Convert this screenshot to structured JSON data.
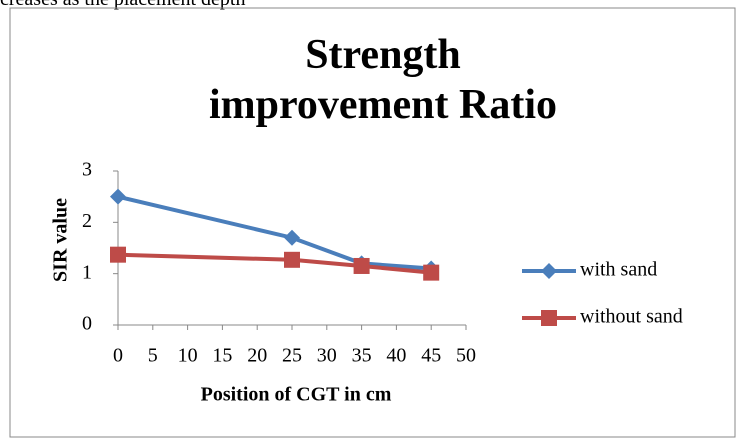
{
  "header_text": "creases as the placement depth",
  "chart_data": {
    "type": "line",
    "title": "Strength improvement Ratio",
    "x_label": "Position of CGT in cm",
    "y_label": "SIR value",
    "x": [
      0,
      25,
      35,
      45
    ],
    "series": [
      {
        "name": "with sand",
        "color": "#4a7ebb",
        "marker": "diamond",
        "values": [
          2.5,
          1.7,
          1.2,
          1.1
        ]
      },
      {
        "name": "without sand",
        "color": "#be4b48",
        "marker": "square",
        "values": [
          1.37,
          1.27,
          1.15,
          1.02
        ]
      }
    ],
    "xlim": [
      0,
      50
    ],
    "xticks": [
      0,
      5,
      10,
      15,
      20,
      25,
      30,
      35,
      40,
      45,
      50
    ],
    "ylim": [
      0,
      3
    ],
    "yticks": [
      0,
      1,
      2,
      3
    ],
    "grid": false,
    "legend": "right"
  }
}
